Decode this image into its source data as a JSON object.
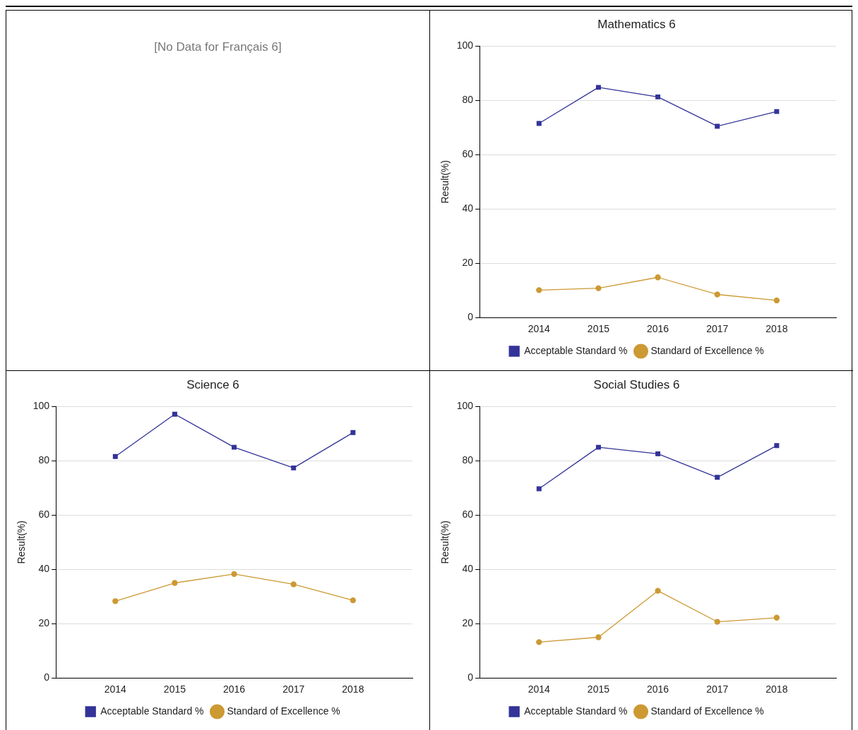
{
  "chart_data": [
    {
      "type": "other",
      "annotations": [
        "[No Data for Français 6]"
      ]
    },
    {
      "type": "line",
      "title": "Mathematics 6",
      "ylabel": "Result(%)",
      "categories": [
        "2014",
        "2015",
        "2016",
        "2017",
        "2018"
      ],
      "ylim": [
        0,
        100
      ],
      "yticks": [
        0,
        20,
        40,
        60,
        80,
        100
      ],
      "grid": "y",
      "legend": "bottom",
      "series": [
        {
          "name": "Acceptable Standard %",
          "color": "#333399",
          "marker": "square",
          "values": [
            71.5,
            84.8,
            81.3,
            70.5,
            75.9
          ]
        },
        {
          "name": "Standard of Excellence %",
          "color": "#cc9933",
          "marker": "circle",
          "values": [
            10.1,
            10.8,
            14.8,
            8.5,
            6.3
          ]
        }
      ]
    },
    {
      "type": "line",
      "title": "Science 6",
      "ylabel": "Result(%)",
      "categories": [
        "2014",
        "2015",
        "2016",
        "2017",
        "2018"
      ],
      "ylim": [
        0,
        100
      ],
      "yticks": [
        0,
        20,
        40,
        60,
        80,
        100
      ],
      "grid": "y",
      "legend": "bottom",
      "series": [
        {
          "name": "Acceptable Standard %",
          "color": "#333399",
          "marker": "square",
          "values": [
            81.6,
            97.2,
            85.0,
            77.4,
            90.4
          ]
        },
        {
          "name": "Standard of Excellence %",
          "color": "#cc9933",
          "marker": "circle",
          "values": [
            28.3,
            35.0,
            38.3,
            34.5,
            28.6
          ]
        }
      ]
    },
    {
      "type": "line",
      "title": "Social Studies 6",
      "ylabel": "Result(%)",
      "categories": [
        "2014",
        "2015",
        "2016",
        "2017",
        "2018"
      ],
      "ylim": [
        0,
        100
      ],
      "yticks": [
        0,
        20,
        40,
        60,
        80,
        100
      ],
      "grid": "y",
      "legend": "bottom",
      "series": [
        {
          "name": "Acceptable Standard %",
          "color": "#333399",
          "marker": "square",
          "values": [
            69.7,
            85.0,
            82.6,
            73.9,
            85.6
          ]
        },
        {
          "name": "Standard of Excellence %",
          "color": "#cc9933",
          "marker": "circle",
          "values": [
            13.2,
            15.0,
            32.1,
            20.7,
            22.2
          ]
        }
      ]
    }
  ]
}
